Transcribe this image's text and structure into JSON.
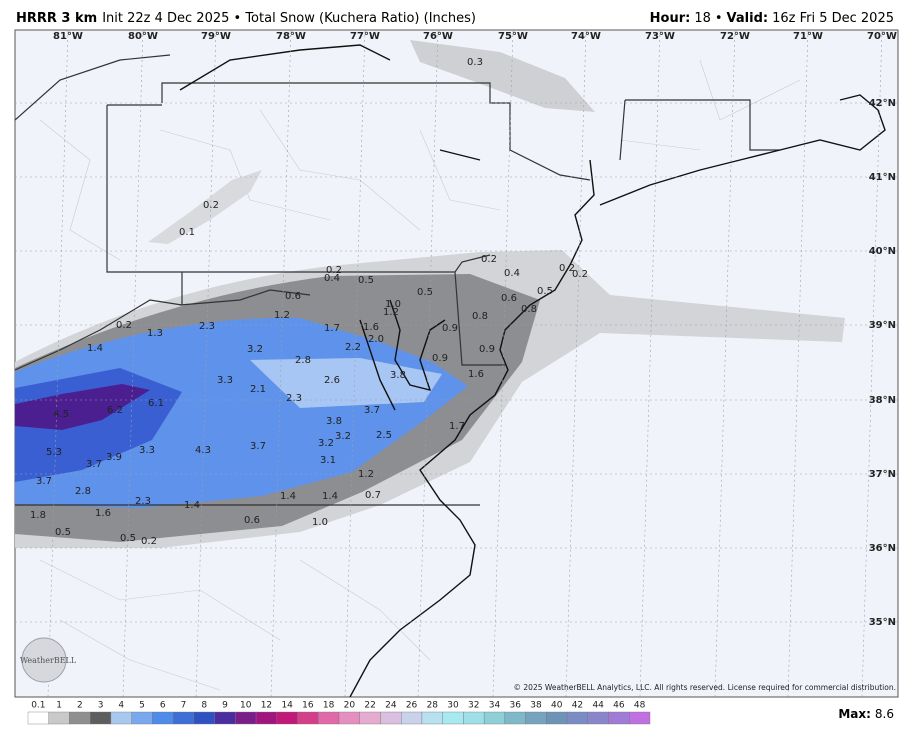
{
  "header": {
    "model": "HRRR 3 km",
    "description": "Init 22z 4 Dec 2025 • Total Snow (Kuchera Ratio) (Inches)",
    "status": [
      {
        "label": "Hour:",
        "value": "18"
      },
      {
        "label": "Valid:",
        "value": "16z Fri 5 Dec 2025"
      }
    ],
    "separator": "•"
  },
  "longitudes": [
    "81°W",
    "80°W",
    "79°W",
    "78°W",
    "77°W",
    "76°W",
    "75°W",
    "74°W",
    "73°W",
    "72°W",
    "71°W",
    "70°W"
  ],
  "latitudes": [
    "42°N",
    "41°N",
    "40°N",
    "39°N",
    "38°N",
    "37°N",
    "36°N",
    "35°N"
  ],
  "map_labels": [
    "0.3",
    "0.2",
    "0.1",
    "0.2",
    "0.4",
    "0.5",
    "0.6",
    "1.2",
    "1.0",
    "1.2",
    "0.5",
    "1.7",
    "1.6",
    "2.0",
    "2.2",
    "0.9",
    "0.8",
    "0.6",
    "0.4",
    "0.2",
    "0.2",
    "0.2",
    "0.5",
    "0.8",
    "0.9",
    "1.6",
    "0.9",
    "3.8",
    "0.2",
    "1.3",
    "2.3",
    "3.2",
    "2.8",
    "1.4",
    "3.3",
    "2.1",
    "2.3",
    "2.6",
    "3.7",
    "3.8",
    "3.2",
    "3.2",
    "2.5",
    "1.7",
    "3.1",
    "4.3",
    "3.7",
    "3.3",
    "6.1",
    "6.2",
    "4.5",
    "5.3",
    "3.7",
    "3.9",
    "3.7",
    "2.8",
    "2.3",
    "1.4",
    "1.4",
    "1.4",
    "1.2",
    "0.7",
    "1.6",
    "0.6",
    "1.0",
    "1.8",
    "0.5",
    "0.5",
    "0.2"
  ],
  "colorbar": {
    "ticks": [
      "0.1",
      "1",
      "2",
      "3",
      "4",
      "5",
      "6",
      "7",
      "8",
      "9",
      "10",
      "12",
      "14",
      "16",
      "18",
      "20",
      "22",
      "24",
      "26",
      "28",
      "30",
      "32",
      "34",
      "36",
      "38",
      "40",
      "42",
      "44",
      "46",
      "48"
    ]
  },
  "max": {
    "label": "Max:",
    "value": "8.6"
  },
  "copyright": "© 2025 WeatherBELL Analytics, LLC. All rights reserved. License required for commercial distribution.",
  "logo": "WeatherBELL"
}
